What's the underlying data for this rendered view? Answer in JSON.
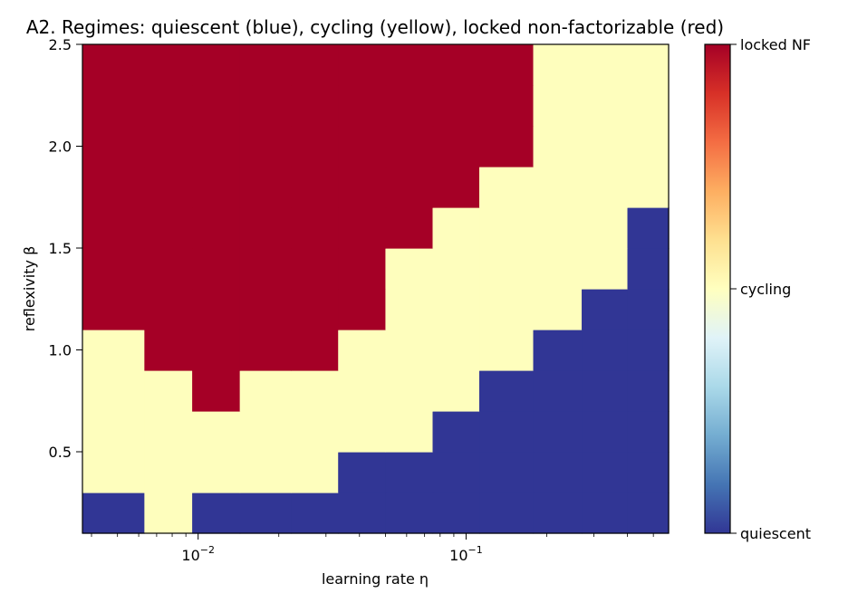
{
  "chart_data": {
    "type": "heatmap",
    "title": "A2. Regimes: quiescent (blue), cycling (yellow), locked non-factorizable (red)",
    "xlabel": "learning rate η",
    "ylabel": "reflexivity β",
    "xscale": "log",
    "xlim": [
      0.0037,
      0.57
    ],
    "ylim": [
      0.1,
      2.5
    ],
    "x_ticks": [
      {
        "value": 0.01,
        "label": "10−2"
      },
      {
        "value": 0.1,
        "label": "10−1"
      }
    ],
    "y_ticks": [
      {
        "value": 0.5,
        "label": "0.5"
      },
      {
        "value": 1.0,
        "label": "1.0"
      },
      {
        "value": 1.5,
        "label": "1.5"
      },
      {
        "value": 2.0,
        "label": "2.0"
      },
      {
        "value": 2.5,
        "label": "2.5"
      }
    ],
    "x_edges": [
      0.0037,
      0.0063,
      0.0095,
      0.0143,
      0.0222,
      0.0333,
      0.05,
      0.075,
      0.112,
      0.178,
      0.27,
      0.4,
      0.57
    ],
    "y_edges": [
      0.1,
      0.3,
      0.5,
      0.7,
      0.9,
      1.1,
      1.3,
      1.5,
      1.7,
      1.9,
      2.1,
      2.3,
      2.5
    ],
    "regime_codes": {
      "quiescent": 0,
      "cycling": 1,
      "locked NF": 2
    },
    "z": [
      [
        0,
        1,
        0,
        0,
        0,
        0,
        0,
        0,
        0,
        0,
        0,
        0
      ],
      [
        1,
        1,
        1,
        1,
        1,
        0,
        0,
        0,
        0,
        0,
        0,
        0
      ],
      [
        1,
        1,
        1,
        1,
        1,
        1,
        1,
        0,
        0,
        0,
        0,
        0
      ],
      [
        1,
        1,
        2,
        1,
        1,
        1,
        1,
        1,
        0,
        0,
        0,
        0
      ],
      [
        1,
        2,
        2,
        2,
        2,
        1,
        1,
        1,
        1,
        0,
        0,
        0
      ],
      [
        2,
        2,
        2,
        2,
        2,
        2,
        1,
        1,
        1,
        1,
        0,
        0
      ],
      [
        2,
        2,
        2,
        2,
        2,
        2,
        1,
        1,
        1,
        1,
        1,
        0
      ],
      [
        2,
        2,
        2,
        2,
        2,
        2,
        2,
        1,
        1,
        1,
        1,
        0
      ],
      [
        2,
        2,
        2,
        2,
        2,
        2,
        2,
        2,
        1,
        1,
        1,
        1
      ],
      [
        2,
        2,
        2,
        2,
        2,
        2,
        2,
        2,
        2,
        1,
        1,
        1
      ],
      [
        2,
        2,
        2,
        2,
        2,
        2,
        2,
        2,
        2,
        1,
        1,
        1
      ],
      [
        2,
        2,
        2,
        2,
        2,
        2,
        2,
        2,
        2,
        1,
        1,
        1
      ]
    ],
    "regime_colors": [
      "#313695",
      "#fefebd",
      "#a50026"
    ],
    "colormap": "RdYlBu_r",
    "colorbar": {
      "min": 0,
      "max": 2,
      "ticks": [
        {
          "value": 0,
          "label": "quiescent"
        },
        {
          "value": 1,
          "label": "cycling"
        },
        {
          "value": 2,
          "label": "locked NF"
        }
      ],
      "stops": [
        "#313695",
        "#4575b4",
        "#74add1",
        "#abd9e9",
        "#e0f3f8",
        "#ffffbf",
        "#fee090",
        "#fdae61",
        "#f46d43",
        "#d73027",
        "#a50026"
      ]
    }
  }
}
